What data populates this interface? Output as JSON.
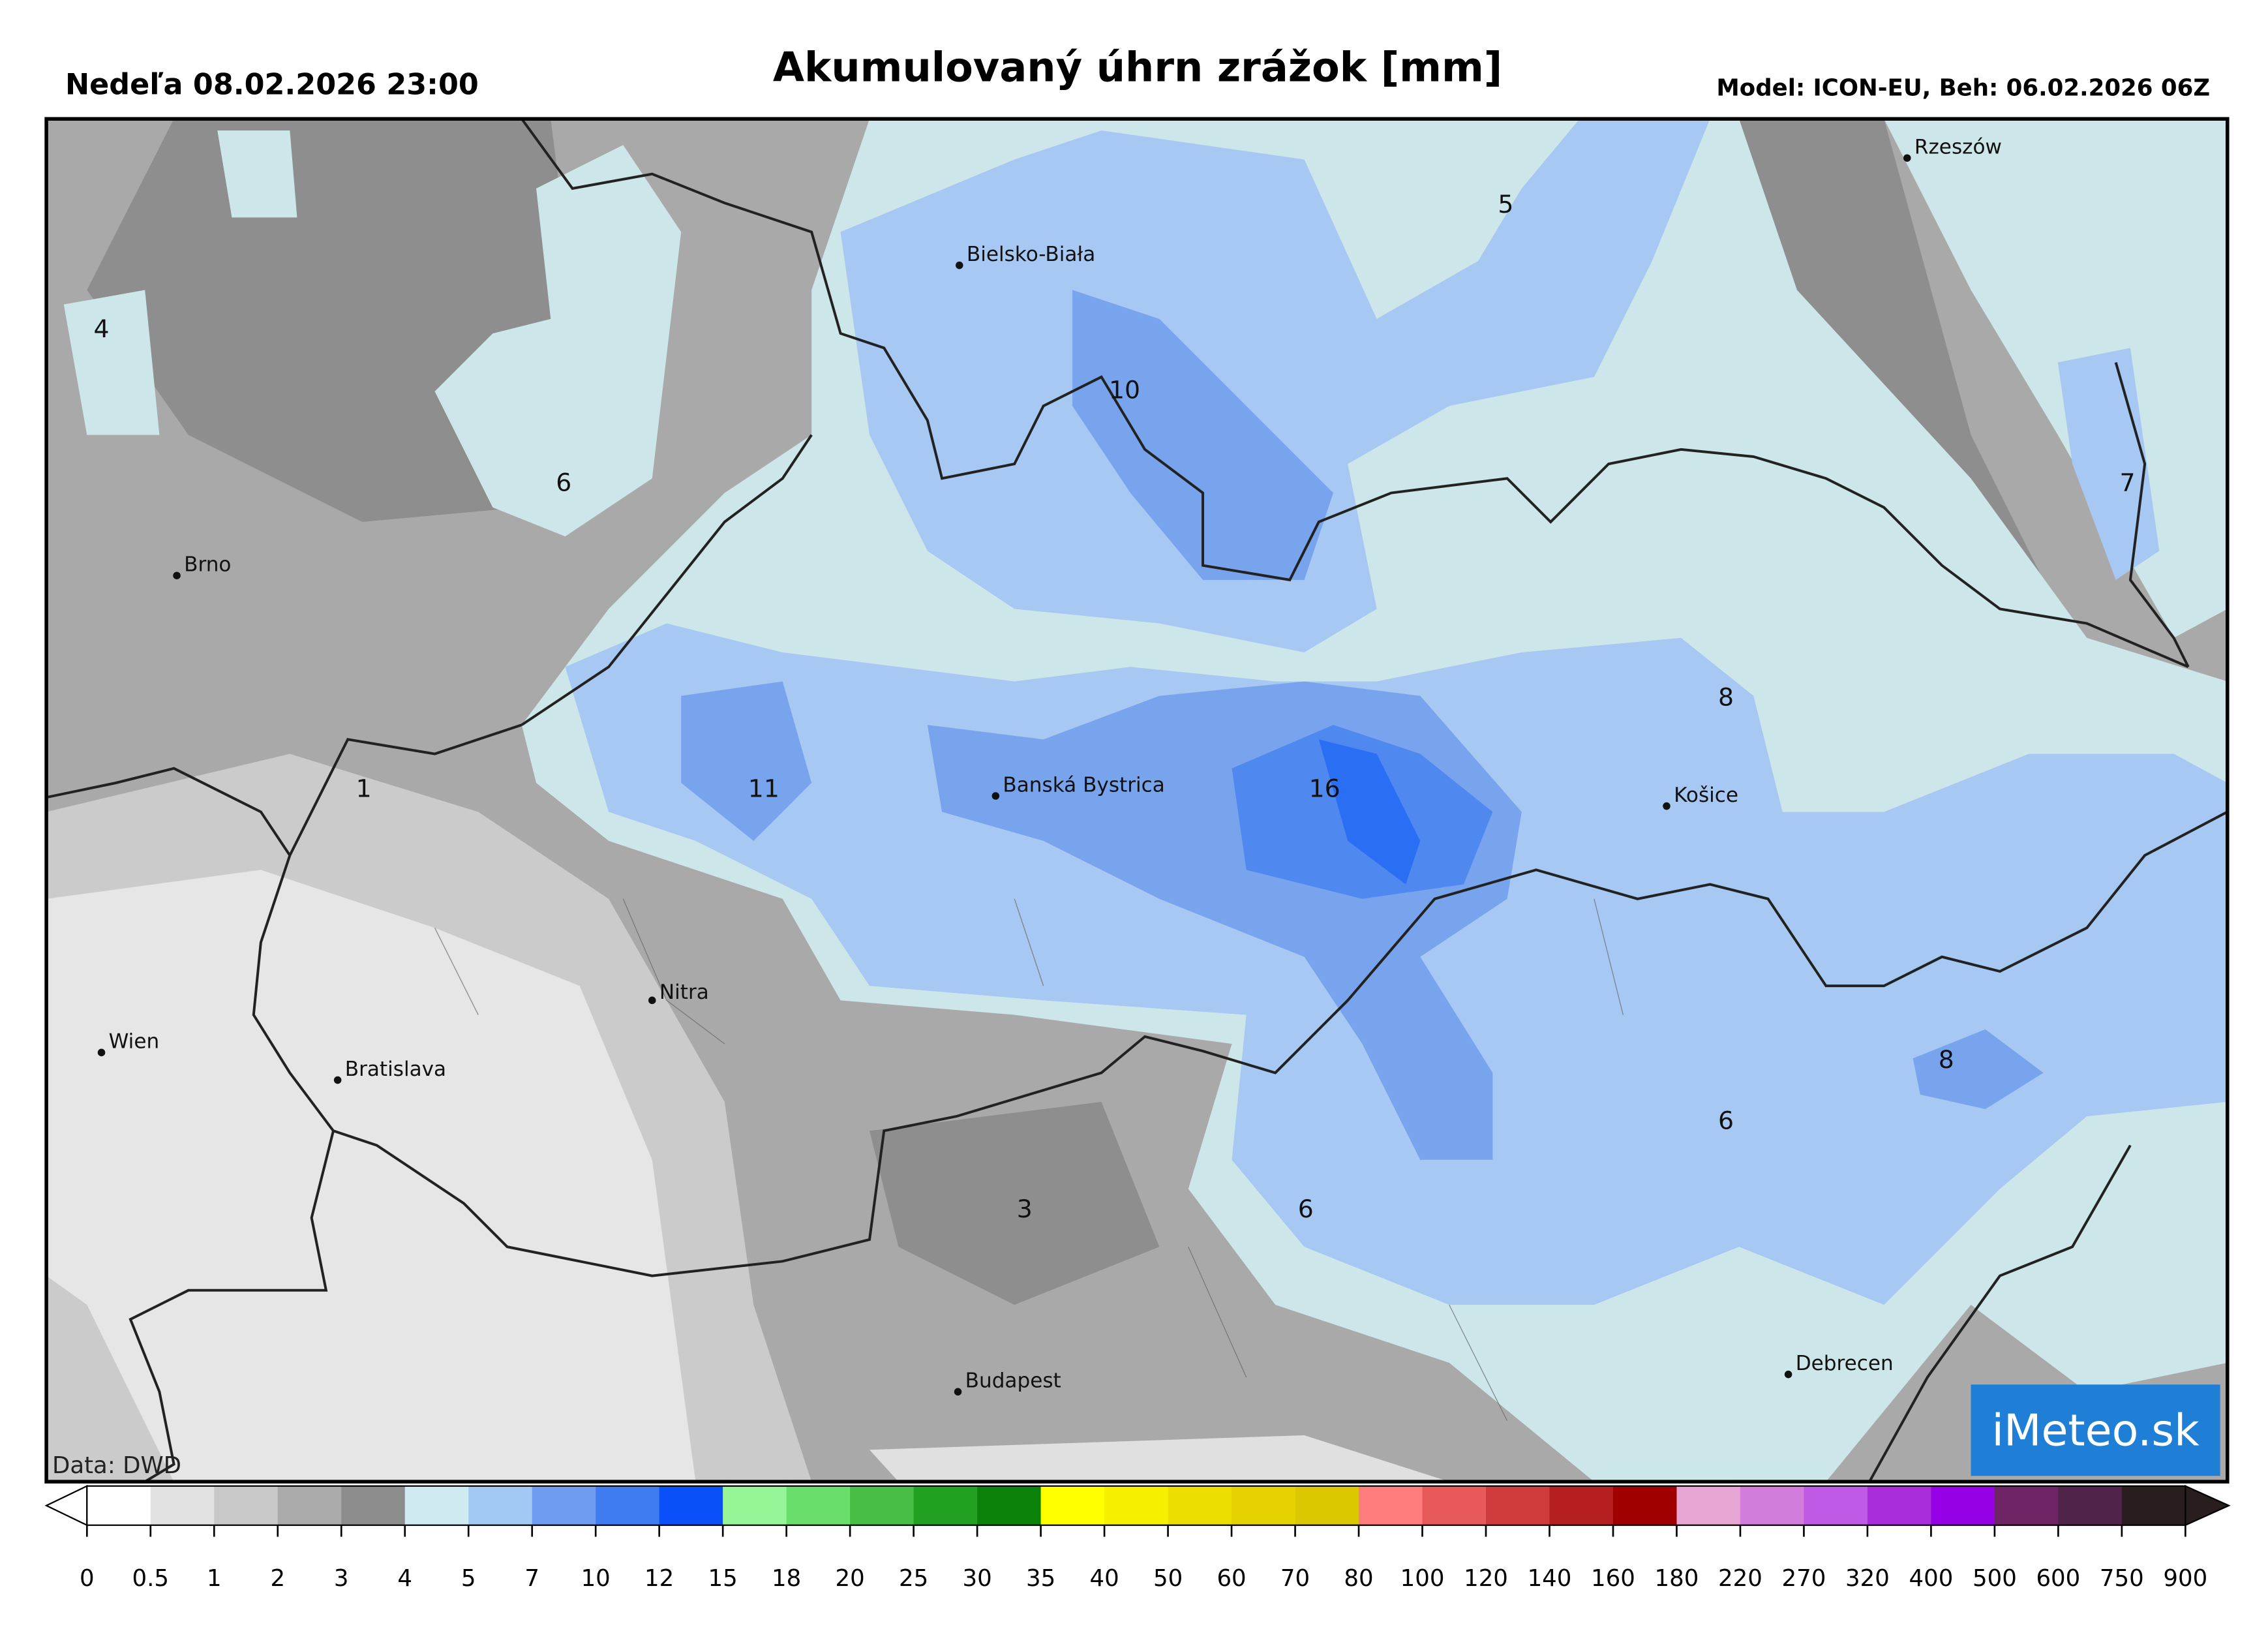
{
  "header": {
    "date": "Nedeľa 08.02.2026 23:00",
    "title": "Akumulovaný úhrn zrážok [mm]",
    "model": "Model: ICON-EU, Beh: 06.02.2026 06Z"
  },
  "cities": [
    "Rzeszów",
    "Bielsko-Biała",
    "Brno",
    "Banská Bystrica",
    "Košice",
    "Nitra",
    "Wien",
    "Bratislava",
    "Budapest",
    "Debrecen"
  ],
  "contour_labels": [
    4,
    6,
    10,
    5,
    7,
    8,
    1,
    11,
    16,
    8,
    6,
    6,
    3
  ],
  "credit": "Data: DWD",
  "logo": "iMeteo.sk",
  "colorbar": {
    "ticks": [
      0,
      0.5,
      1,
      2,
      3,
      4,
      5,
      7,
      10,
      12,
      15,
      18,
      20,
      25,
      30,
      35,
      40,
      50,
      60,
      70,
      80,
      100,
      120,
      140,
      160,
      180,
      220,
      270,
      320,
      400,
      500,
      600,
      750,
      900
    ],
    "colors": [
      "#ffffff",
      "#e1e1e1",
      "#c8c8c8",
      "#aaaaaa",
      "#8c8c8c",
      "#cfeaf0",
      "#a2c8f4",
      "#6f9cf0",
      "#3f7cf2",
      "#0a50fa",
      "#96f596",
      "#6ade6a",
      "#46be46",
      "#22a022",
      "#0a820a",
      "#ffff00",
      "#f7ef00",
      "#ecdf00",
      "#e6d200",
      "#dcc800",
      "#ff7d7d",
      "#e85a5a",
      "#d03c3c",
      "#b41e1e",
      "#a00000",
      "#e6a5d2",
      "#d27ddc",
      "#be5ae6",
      "#aa2ddc",
      "#9600e6",
      "#6e2364",
      "#50234b",
      "#281e1e"
    ]
  }
}
